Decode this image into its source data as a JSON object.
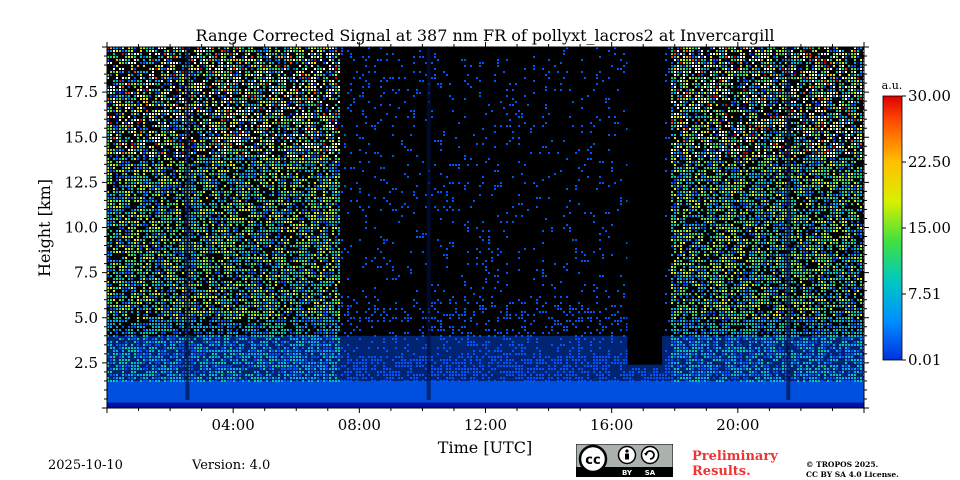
{
  "chart_data": {
    "type": "heatmap",
    "title": "Range Corrected Signal at 387 nm FR of pollyxt_lacros2 at Invercargill",
    "xlabel": "Time [UTC]",
    "ylabel": "Height [km]",
    "xlim_hours": [
      0,
      24
    ],
    "ylim_km": [
      0,
      20
    ],
    "x_ticks": [
      {
        "value": 4,
        "label": "04:00"
      },
      {
        "value": 8,
        "label": "08:00"
      },
      {
        "value": 12,
        "label": "12:00"
      },
      {
        "value": 16,
        "label": "16:00"
      },
      {
        "value": 20,
        "label": "20:00"
      }
    ],
    "y_ticks": [
      {
        "value": 2.5,
        "label": "2.5"
      },
      {
        "value": 5.0,
        "label": "5.0"
      },
      {
        "value": 7.5,
        "label": "7.5"
      },
      {
        "value": 10.0,
        "label": "10.0"
      },
      {
        "value": 12.5,
        "label": "12.5"
      },
      {
        "value": 15.0,
        "label": "15.0"
      },
      {
        "value": 17.5,
        "label": "17.5"
      }
    ],
    "colorbar": {
      "unit": "a.u.",
      "min": 0.01,
      "max": 30.0,
      "ticks": [
        {
          "value": 0.01,
          "label": "0.01"
        },
        {
          "value": 7.51,
          "label": "7.51"
        },
        {
          "value": 15.0,
          "label": "15.00"
        },
        {
          "value": 22.5,
          "label": "22.50"
        },
        {
          "value": 30.0,
          "label": "30.00"
        }
      ]
    },
    "features": {
      "daytime_low_signal_hours": [
        7.4,
        17.8
      ],
      "signal_gap_hours": [
        16.5,
        17.6
      ],
      "vertical_dropouts_hours": [
        2.55,
        10.2,
        21.6
      ],
      "boundary_layer_top_km": 1.5
    }
  },
  "footer": {
    "date": "2025-10-10",
    "version": "Version: 4.0",
    "preliminary_line1": "Preliminary",
    "preliminary_line2": "Results.",
    "copyright_line1": "© TROPOS 2025.",
    "copyright_line2": "CC BY SA 4.0 License.",
    "badge_by": "BY",
    "badge_sa": "SA"
  },
  "colors": {
    "background_cell": "#000000",
    "low_signal": "#0050e0",
    "colormap": [
      "#0000aa",
      "#0055ff",
      "#00aaff",
      "#00d0a0",
      "#60e040",
      "#e0f000",
      "#ffb000",
      "#ff4000",
      "#d00000"
    ]
  }
}
